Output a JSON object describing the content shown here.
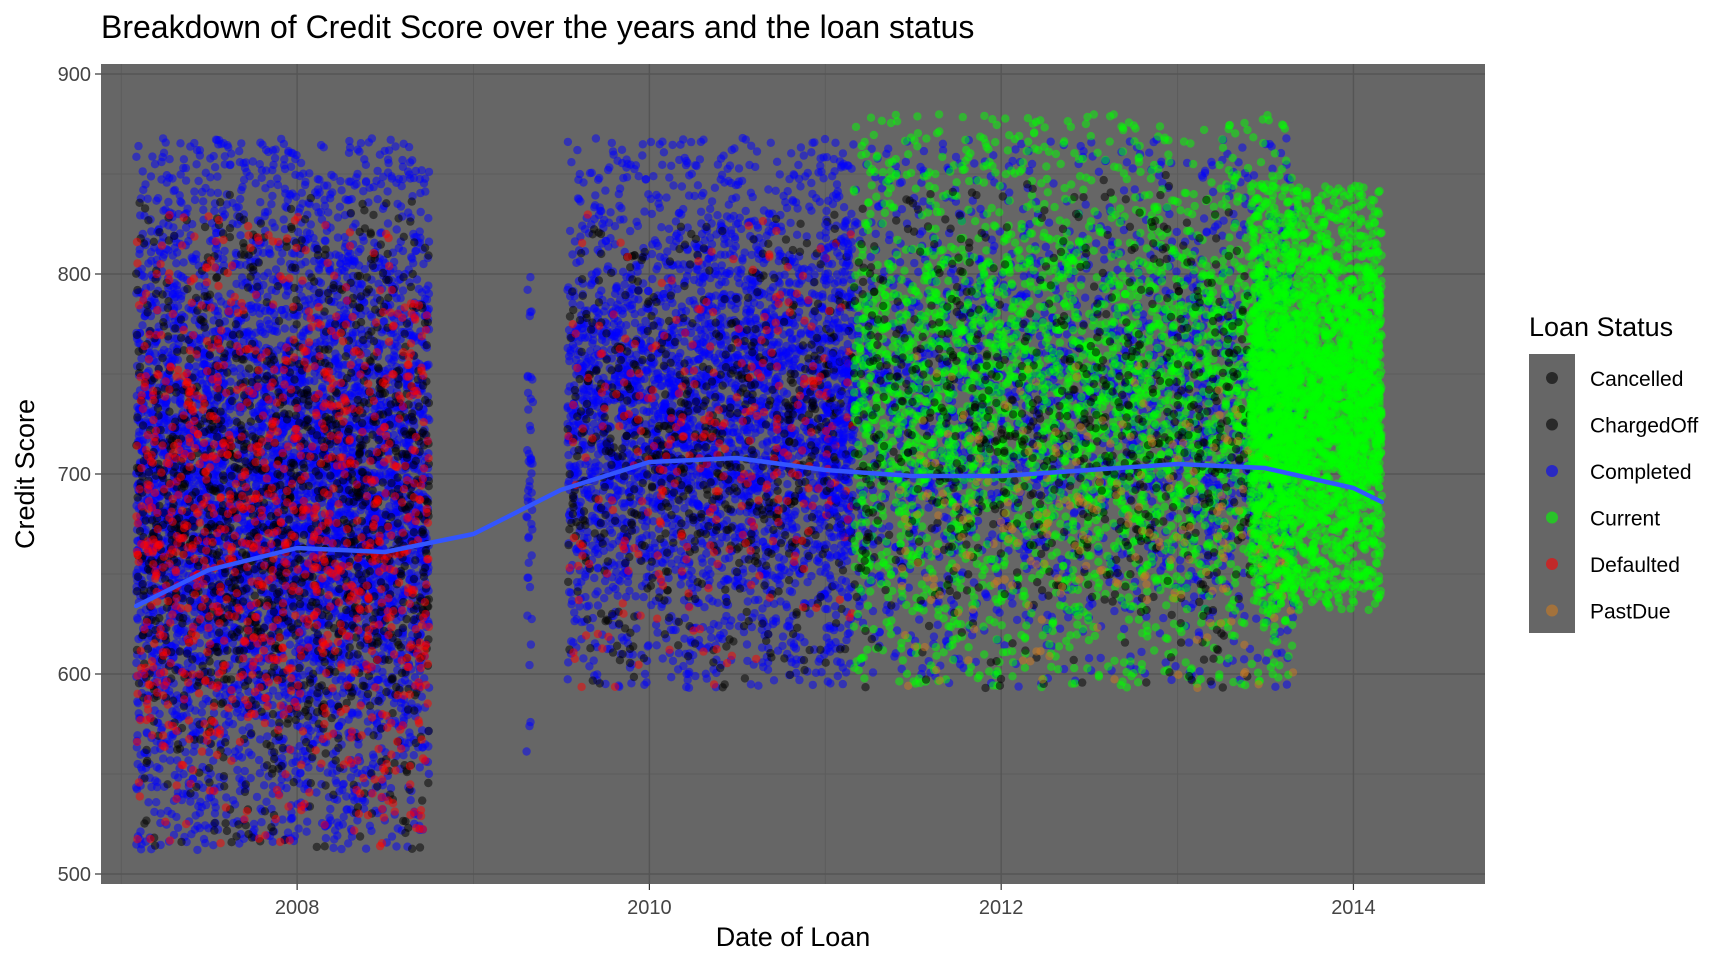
{
  "chart_data": {
    "type": "scatter",
    "title": "Breakdown of Credit Score over the years and the loan status",
    "xlabel": "Date of Loan",
    "ylabel": "Credit Score",
    "xlim": [
      "2006-11-20",
      "2014-10-01"
    ],
    "ylim": [
      495,
      905
    ],
    "x_ticks": [
      "2008",
      "2010",
      "2012",
      "2014"
    ],
    "y_ticks": [
      500,
      600,
      700,
      800,
      900
    ],
    "grid": true,
    "panel_background": "#666666",
    "legend": {
      "title": "Loan Status",
      "placement": "right",
      "entries": [
        {
          "name": "Cancelled",
          "color": "#000000"
        },
        {
          "name": "ChargedOff",
          "color": "#000000"
        },
        {
          "name": "Completed",
          "color": "#0000ff"
        },
        {
          "name": "Current",
          "color": "#00ff00"
        },
        {
          "name": "Defaulted",
          "color": "#ff0000"
        },
        {
          "name": "PastDue",
          "color": "#cc7a1f"
        }
      ]
    },
    "point_clouds": [
      {
        "status": "Completed",
        "x_range": [
          "2007-02-01",
          "2008-10-01"
        ],
        "y_range": [
          512,
          868
        ],
        "density": 5200
      },
      {
        "status": "ChargedOff",
        "x_range": [
          "2007-02-01",
          "2008-10-01"
        ],
        "y_range": [
          512,
          840
        ],
        "density": 1500
      },
      {
        "status": "Defaulted",
        "x_range": [
          "2007-02-01",
          "2008-10-01"
        ],
        "y_range": [
          512,
          830
        ],
        "density": 1100
      },
      {
        "status": "Completed",
        "x_range": [
          "2009-04-20",
          "2009-05-05"
        ],
        "y_range": [
          560,
          815
        ],
        "density": 50
      },
      {
        "status": "Completed",
        "x_range": [
          "2009-07-15",
          "2011-03-01"
        ],
        "y_range": [
          593,
          868
        ],
        "density": 3200
      },
      {
        "status": "ChargedOff",
        "x_range": [
          "2009-07-15",
          "2011-03-01"
        ],
        "y_range": [
          593,
          830
        ],
        "density": 700
      },
      {
        "status": "Defaulted",
        "x_range": [
          "2009-07-15",
          "2011-03-01"
        ],
        "y_range": [
          593,
          830
        ],
        "density": 300
      },
      {
        "status": "Completed",
        "x_range": [
          "2011-01-01",
          "2013-09-01"
        ],
        "y_range": [
          593,
          868
        ],
        "density": 2200
      },
      {
        "status": "Current",
        "x_range": [
          "2011-03-01",
          "2013-09-01"
        ],
        "y_range": [
          593,
          880
        ],
        "density": 3200
      },
      {
        "status": "ChargedOff",
        "x_range": [
          "2011-03-01",
          "2013-06-01"
        ],
        "y_range": [
          593,
          850
        ],
        "density": 800
      },
      {
        "status": "PastDue",
        "x_range": [
          "2011-06-01",
          "2013-09-01"
        ],
        "y_range": [
          593,
          760
        ],
        "density": 250
      },
      {
        "status": "Current",
        "x_range": [
          "2013-06-01",
          "2014-03-01"
        ],
        "y_range": [
          632,
          845
        ],
        "density": 3500
      }
    ],
    "trend_line": {
      "name": "smooth",
      "color": "#3355ff",
      "x": [
        "2007-02-01",
        "2007-07-01",
        "2008-01-01",
        "2008-07-01",
        "2009-01-01",
        "2009-07-01",
        "2010-01-01",
        "2010-07-01",
        "2011-01-01",
        "2011-07-01",
        "2012-01-01",
        "2012-07-01",
        "2013-01-01",
        "2013-07-01",
        "2014-01-01",
        "2014-03-01"
      ],
      "y": [
        634,
        652,
        663,
        661,
        670,
        692,
        706,
        708,
        702,
        699,
        699,
        702,
        705,
        703,
        693,
        686
      ]
    }
  }
}
